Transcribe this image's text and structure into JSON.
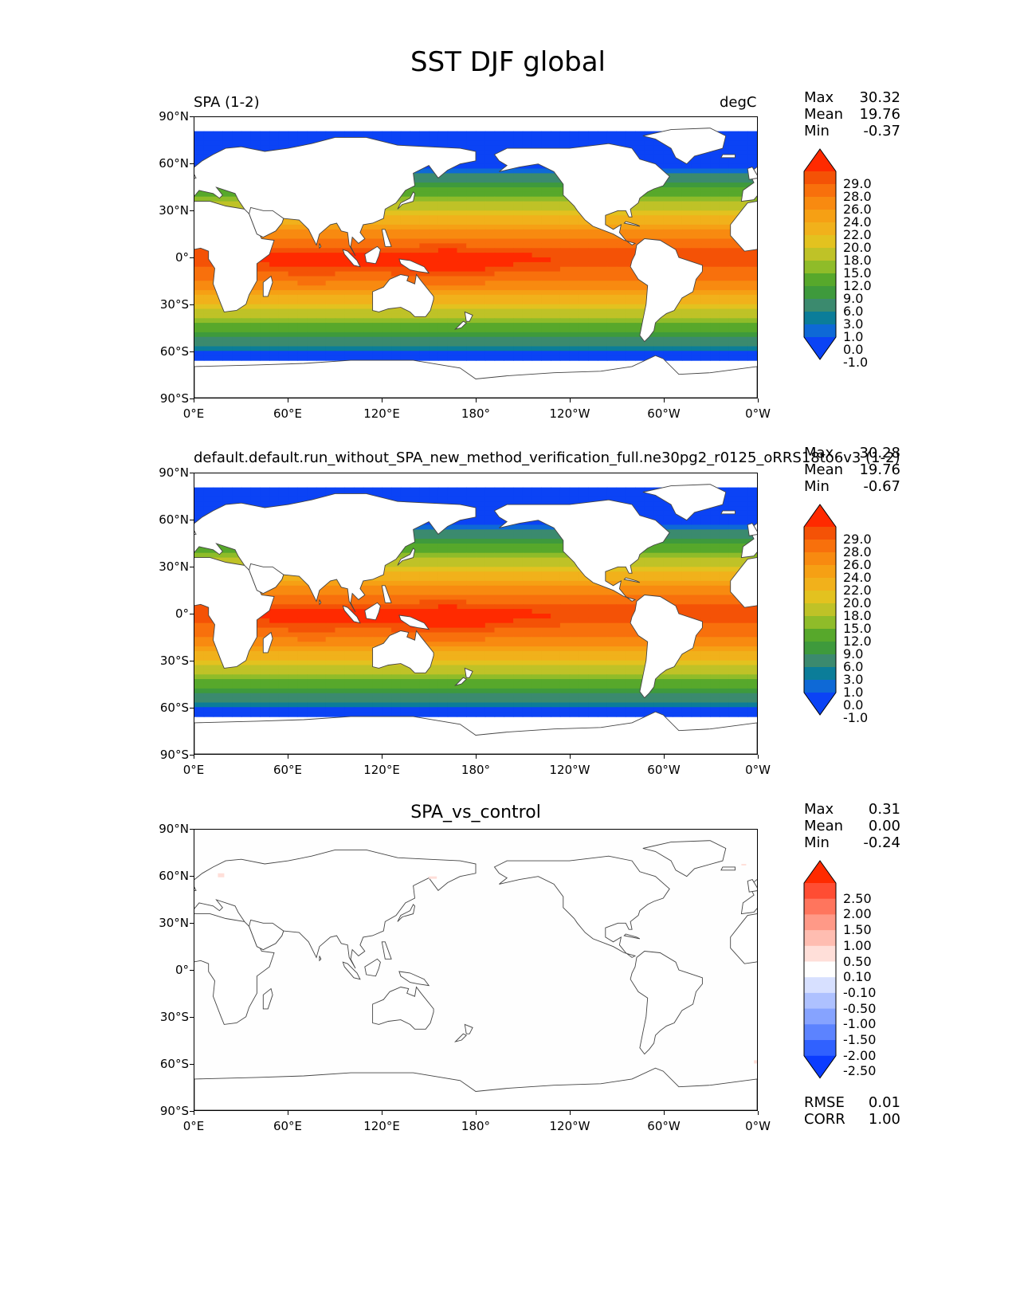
{
  "figure": {
    "title": "SST DJF global"
  },
  "panels": [
    {
      "left_title": "SPA (1-2)",
      "center_title": "",
      "right_title": "degC",
      "stats": {
        "max_label": "Max",
        "max": "30.32",
        "mean_label": "Mean",
        "mean": "19.76",
        "min_label": "Min",
        "min": "-0.37"
      },
      "colorbar_labels": [
        "29.0",
        "28.0",
        "26.0",
        "24.0",
        "22.0",
        "20.0",
        "18.0",
        "15.0",
        "12.0",
        "9.0",
        "6.0",
        "3.0",
        "1.0",
        "0.0",
        "-1.0"
      ]
    },
    {
      "left_title": "default.default.run_without_SPA_new_method_verification_full.ne30pg2_r0125_oRRS18to6v3 (1-2)",
      "center_title": "",
      "right_title": "",
      "stats": {
        "max_label": "Max",
        "max": "30.28",
        "mean_label": "Mean",
        "mean": "19.76",
        "min_label": "Min",
        "min": "-0.67"
      },
      "colorbar_labels": [
        "29.0",
        "28.0",
        "26.0",
        "24.0",
        "22.0",
        "20.0",
        "18.0",
        "15.0",
        "12.0",
        "9.0",
        "6.0",
        "3.0",
        "1.0",
        "0.0",
        "-1.0"
      ]
    },
    {
      "left_title": "",
      "center_title": "SPA_vs_control",
      "right_title": "",
      "stats": {
        "max_label": "Max",
        "max": "0.31",
        "mean_label": "Mean",
        "mean": "0.00",
        "min_label": "Min",
        "min": "-0.24"
      },
      "colorbar_labels": [
        "2.50",
        "2.00",
        "1.50",
        "1.00",
        "0.50",
        "0.10",
        "-0.10",
        "-0.50",
        "-1.00",
        "-1.50",
        "-2.00",
        "-2.50"
      ],
      "rmse_label": "RMSE",
      "rmse": "0.01",
      "corr_label": "CORR",
      "corr": "1.00"
    }
  ],
  "axes": {
    "lat_ticks": [
      "90°N",
      "60°N",
      "30°N",
      "0°",
      "30°S",
      "60°S",
      "90°S"
    ],
    "lon_ticks": [
      "0°E",
      "60°E",
      "120°E",
      "180°",
      "120°W",
      "60°W",
      "0°W"
    ]
  },
  "colors": {
    "sst_palette": [
      "#0b43f5",
      "#0e69d6",
      "#0b7d99",
      "#3b8a6e",
      "#3e9a3c",
      "#57a82b",
      "#8fbc29",
      "#bfc227",
      "#e3c21f",
      "#f1b11b",
      "#f6a014",
      "#f88a10",
      "#f8700c",
      "#f45206",
      "#ff2a00"
    ],
    "diff_palette": [
      "#0b3cff",
      "#3061ff",
      "#5c83ff",
      "#86a3ff",
      "#aec1ff",
      "#d7e0ff",
      "#ffffff",
      "#ffdfd9",
      "#ffbdb1",
      "#ff9987",
      "#ff755d",
      "#ff4d33",
      "#ff2a00"
    ],
    "land": "#ffffff",
    "coast": "#444444"
  }
}
